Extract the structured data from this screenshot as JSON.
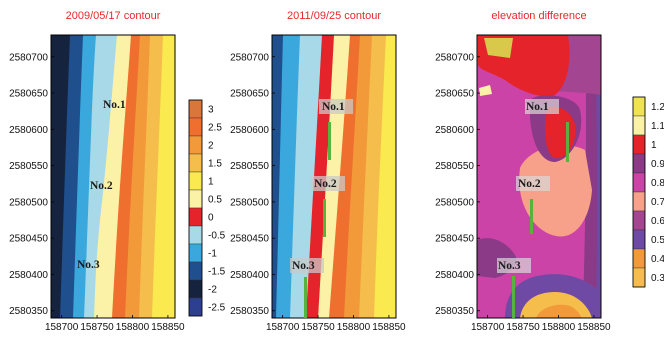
{
  "chart_data": [
    {
      "type": "heatmap",
      "title": "2009/05/17 contour",
      "xticks": [
        158700,
        158750,
        158800,
        158850
      ],
      "yticks": [
        2580350,
        2580400,
        2580450,
        2580500,
        2580550,
        2580600,
        2580650,
        2580700
      ],
      "xlim": [
        158685,
        158860
      ],
      "ylim": [
        2580340,
        2580730
      ],
      "colorbar": {
        "levels": [
          "3",
          "2.5",
          "2",
          "1.5",
          "1",
          "0.5",
          "0",
          "-0.5",
          "-1",
          "-1.5",
          "-2",
          "-2.5"
        ],
        "colors": [
          "#d8763c",
          "#ee6f2e",
          "#f2993a",
          "#f5bd4c",
          "#fae94f",
          "#fbf2a7",
          "#e5232a",
          "#a8d9e8",
          "#3aa8dc",
          "#1f4f8c",
          "#15233e",
          "#2d3f8f"
        ]
      },
      "annotations": [
        "No.1",
        "No.2",
        "No.3"
      ]
    },
    {
      "type": "heatmap",
      "title": "2011/09/25 contour",
      "xticks": [
        158700,
        158750,
        158800,
        158850
      ],
      "yticks": [
        2580350,
        2580400,
        2580450,
        2580500,
        2580550,
        2580600,
        2580650,
        2580700
      ],
      "xlim": [
        158685,
        158860
      ],
      "ylim": [
        2580340,
        2580730
      ],
      "annotations": [
        "No.1",
        "No.2",
        "No.3"
      ]
    },
    {
      "type": "heatmap",
      "title": "elevation difference",
      "xticks": [
        158700,
        158750,
        158800,
        158850
      ],
      "yticks": [
        2580350,
        2580400,
        2580450,
        2580500,
        2580550,
        2580600,
        2580650,
        2580700
      ],
      "xlim": [
        158685,
        158860
      ],
      "ylim": [
        2580340,
        2580730
      ],
      "colorbar": {
        "levels": [
          "1.2",
          "1.1",
          "1",
          "0.9",
          "0.8",
          "0.7",
          "0.6",
          "0.5",
          "0.4",
          "0.3"
        ],
        "colors": [
          "#f0e350",
          "#fbf2a7",
          "#e5232a",
          "#8a3a86",
          "#cc43a8",
          "#f7a08a",
          "#a44591",
          "#6e4aa5",
          "#f2993a",
          "#f5bd4c"
        ]
      },
      "annotations": [
        "No.1",
        "No.2",
        "No.3"
      ]
    }
  ]
}
